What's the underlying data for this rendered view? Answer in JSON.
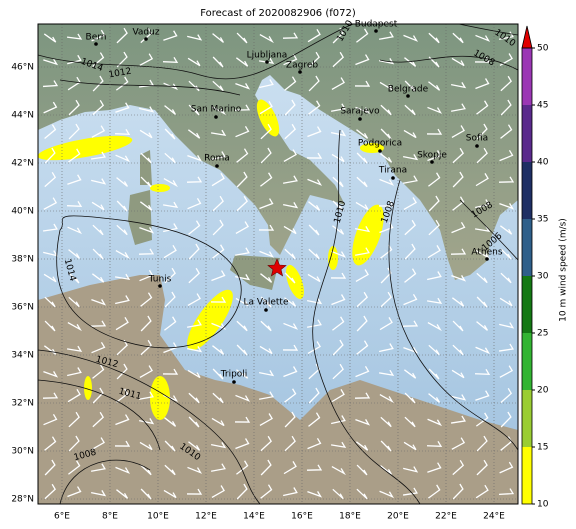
{
  "title": "Forecast of 2020082906 (f072)",
  "lat_labels": [
    "28°N",
    "30°N",
    "32°N",
    "34°N",
    "36°N",
    "38°N",
    "40°N",
    "42°N",
    "44°N",
    "46°N"
  ],
  "lon_labels": [
    "6°E",
    "8°E",
    "10°E",
    "12°E",
    "14°E",
    "16°E",
    "18°E",
    "20°E",
    "22°E",
    "24°E"
  ],
  "colorbar": {
    "label": "10 m wind speed (m/s)",
    "ticks": [
      10,
      15,
      20,
      25,
      30,
      35,
      40,
      45,
      50
    ],
    "colors": [
      "#ffff00",
      "#9acd32",
      "#32b432",
      "#147814",
      "#2e5f8a",
      "#1e2f64",
      "#5a2a8c",
      "#9b37b4"
    ],
    "extend_color": "#e00000"
  },
  "cities": [
    "Bern",
    "Vaduz",
    "Budapest",
    "Ljubljana",
    "Zagreb",
    "San Marino",
    "Belgrade",
    "Sarajevo",
    "Roma",
    "Podgorica",
    "Skopje",
    "Sofia",
    "Tirana",
    "Athens",
    "Tunis",
    "La Valette",
    "Tripoli"
  ],
  "isobar_labels": [
    "1010",
    "1010",
    "1008",
    "1014",
    "1012",
    "1010",
    "1008",
    "1014",
    "1012",
    "1011",
    "1010",
    "1008",
    "1008",
    "1006"
  ]
}
